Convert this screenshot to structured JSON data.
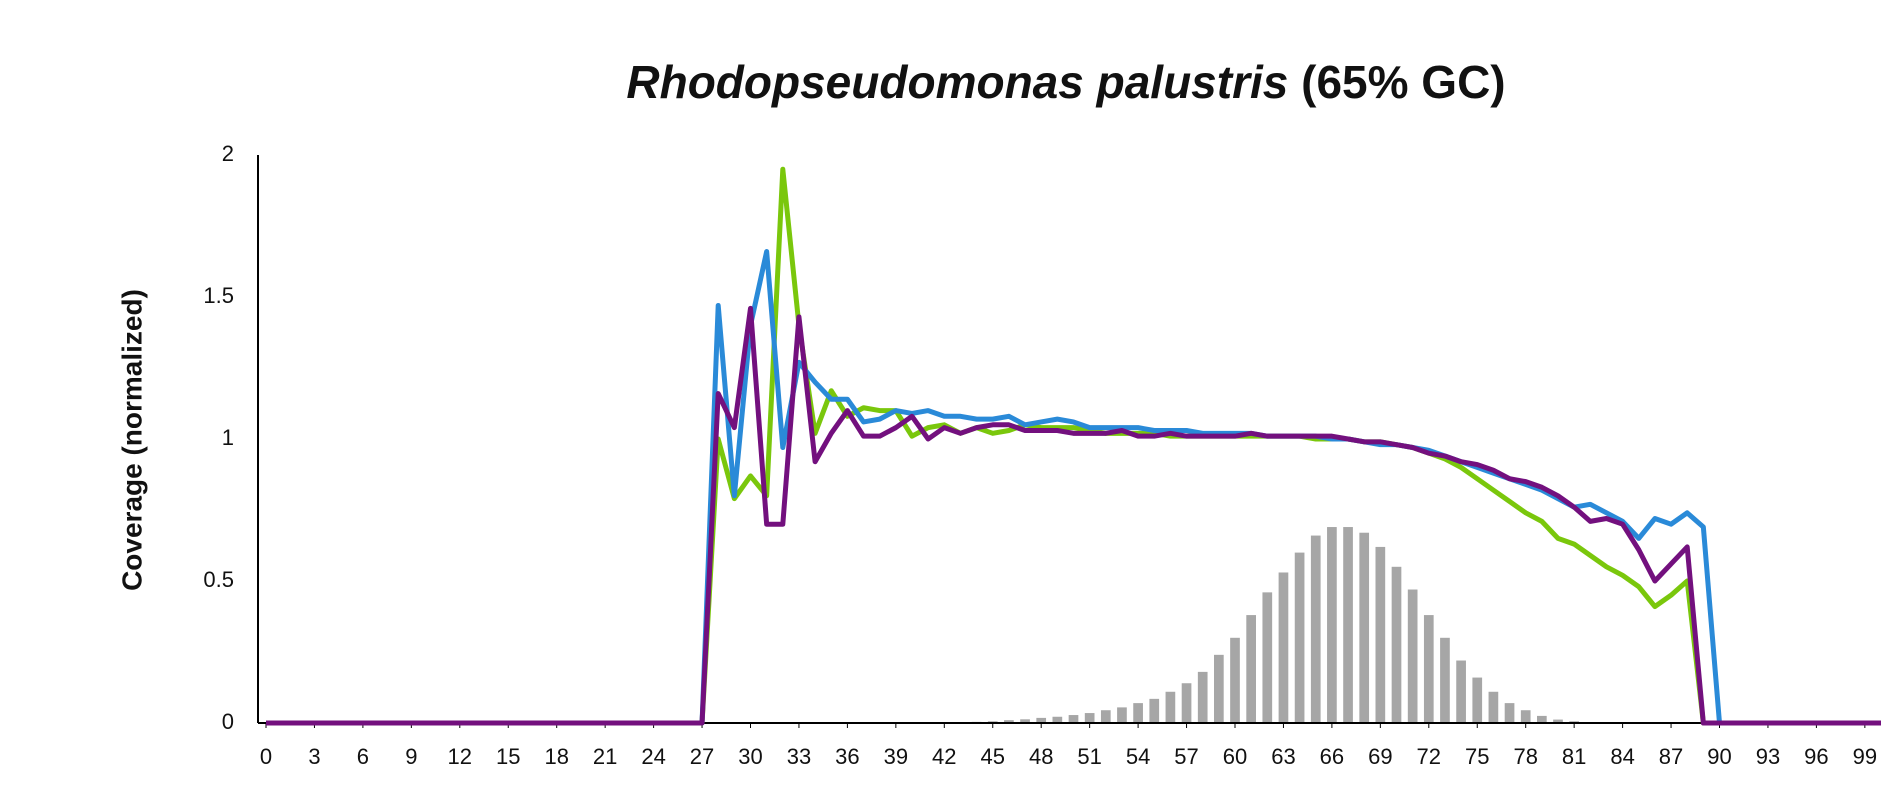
{
  "chart_data": {
    "type": "line",
    "title": "Rhodopseudomonas palustris",
    "title_suffix": " (65% GC)",
    "ylabel": "Coverage (normalized)",
    "x": [
      0,
      1,
      2,
      3,
      4,
      5,
      6,
      7,
      8,
      9,
      10,
      11,
      12,
      13,
      14,
      15,
      16,
      17,
      18,
      19,
      20,
      21,
      22,
      23,
      24,
      25,
      26,
      27,
      28,
      29,
      30,
      31,
      32,
      33,
      34,
      35,
      36,
      37,
      38,
      39,
      40,
      41,
      42,
      43,
      44,
      45,
      46,
      47,
      48,
      49,
      50,
      51,
      52,
      53,
      54,
      55,
      56,
      57,
      58,
      59,
      60,
      61,
      62,
      63,
      64,
      65,
      66,
      67,
      68,
      69,
      70,
      71,
      72,
      73,
      74,
      75,
      76,
      77,
      78,
      79,
      80,
      81,
      82,
      83,
      84,
      85,
      86,
      87,
      88,
      89,
      90,
      91,
      92,
      93,
      94,
      95,
      96,
      97,
      98,
      99,
      100
    ],
    "xlim": [
      0,
      100
    ],
    "xticks": [
      0,
      3,
      6,
      9,
      12,
      15,
      18,
      21,
      24,
      27,
      30,
      33,
      36,
      39,
      42,
      45,
      48,
      51,
      54,
      57,
      60,
      63,
      66,
      69,
      72,
      75,
      78,
      81,
      84,
      87,
      90,
      93,
      96,
      99
    ],
    "ylim": [
      0,
      2
    ],
    "yticks": [
      0,
      0.5,
      1,
      1.5,
      2
    ],
    "bars": {
      "color": "#a6a6a6",
      "values": [
        0,
        0,
        0,
        0,
        0,
        0,
        0,
        0,
        0,
        0,
        0,
        0,
        0,
        0,
        0,
        0,
        0,
        0,
        0,
        0,
        0,
        0,
        0,
        0,
        0,
        0,
        0,
        0,
        0,
        0,
        0,
        0,
        0,
        0,
        0,
        0,
        0,
        0,
        0,
        0,
        0,
        0,
        0,
        0.002,
        0.004,
        0.006,
        0.01,
        0.013,
        0.018,
        0.022,
        0.028,
        0.035,
        0.045,
        0.055,
        0.07,
        0.085,
        0.11,
        0.14,
        0.18,
        0.24,
        0.3,
        0.38,
        0.46,
        0.53,
        0.6,
        0.66,
        0.69,
        0.69,
        0.67,
        0.62,
        0.55,
        0.47,
        0.38,
        0.3,
        0.22,
        0.16,
        0.11,
        0.07,
        0.045,
        0.025,
        0.012,
        0.006,
        0.003,
        0,
        0,
        0,
        0,
        0,
        0,
        0,
        0,
        0,
        0,
        0,
        0,
        0,
        0,
        0,
        0,
        0,
        0
      ]
    },
    "series": [
      {
        "color": "#7ac70c",
        "values": [
          0,
          0,
          0,
          0,
          0,
          0,
          0,
          0,
          0,
          0,
          0,
          0,
          0,
          0,
          0,
          0,
          0,
          0,
          0,
          0,
          0,
          0,
          0,
          0,
          0,
          0,
          0,
          0,
          1.0,
          0.79,
          0.87,
          0.8,
          1.95,
          1.4,
          1.02,
          1.17,
          1.08,
          1.11,
          1.1,
          1.1,
          1.01,
          1.04,
          1.05,
          1.02,
          1.04,
          1.02,
          1.03,
          1.05,
          1.04,
          1.04,
          1.04,
          1.03,
          1.02,
          1.02,
          1.02,
          1.02,
          1.01,
          1.01,
          1.01,
          1.01,
          1.01,
          1.01,
          1.01,
          1.01,
          1.01,
          1.0,
          1.0,
          1.0,
          0.99,
          0.99,
          0.98,
          0.97,
          0.95,
          0.93,
          0.9,
          0.86,
          0.82,
          0.78,
          0.74,
          0.71,
          0.65,
          0.63,
          0.59,
          0.55,
          0.52,
          0.48,
          0.41,
          0.45,
          0.5,
          0,
          0,
          0,
          0,
          0,
          0,
          0,
          0,
          0,
          0,
          0,
          0
        ]
      },
      {
        "color": "#2a8ad8",
        "values": [
          0,
          0,
          0,
          0,
          0,
          0,
          0,
          0,
          0,
          0,
          0,
          0,
          0,
          0,
          0,
          0,
          0,
          0,
          0,
          0,
          0,
          0,
          0,
          0,
          0,
          0,
          0,
          0,
          1.47,
          0.8,
          1.4,
          1.66,
          0.97,
          1.27,
          1.2,
          1.14,
          1.14,
          1.06,
          1.07,
          1.1,
          1.09,
          1.1,
          1.08,
          1.08,
          1.07,
          1.07,
          1.08,
          1.05,
          1.06,
          1.07,
          1.06,
          1.04,
          1.04,
          1.04,
          1.04,
          1.03,
          1.03,
          1.03,
          1.02,
          1.02,
          1.02,
          1.02,
          1.01,
          1.01,
          1.01,
          1.01,
          1.0,
          1.0,
          0.99,
          0.98,
          0.98,
          0.97,
          0.96,
          0.94,
          0.92,
          0.9,
          0.88,
          0.86,
          0.84,
          0.82,
          0.79,
          0.76,
          0.77,
          0.74,
          0.71,
          0.65,
          0.72,
          0.7,
          0.74,
          0.69,
          0,
          0,
          0,
          0,
          0,
          0,
          0,
          0,
          0,
          0,
          0
        ]
      },
      {
        "color": "#73107e",
        "values": [
          0,
          0,
          0,
          0,
          0,
          0,
          0,
          0,
          0,
          0,
          0,
          0,
          0,
          0,
          0,
          0,
          0,
          0,
          0,
          0,
          0,
          0,
          0,
          0,
          0,
          0,
          0,
          0,
          1.16,
          1.04,
          1.46,
          0.7,
          0.7,
          1.43,
          0.92,
          1.02,
          1.1,
          1.01,
          1.01,
          1.04,
          1.08,
          1.0,
          1.04,
          1.02,
          1.04,
          1.05,
          1.05,
          1.03,
          1.03,
          1.03,
          1.02,
          1.02,
          1.02,
          1.03,
          1.01,
          1.01,
          1.02,
          1.01,
          1.01,
          1.01,
          1.01,
          1.02,
          1.01,
          1.01,
          1.01,
          1.01,
          1.01,
          1.0,
          0.99,
          0.99,
          0.98,
          0.97,
          0.95,
          0.94,
          0.92,
          0.91,
          0.89,
          0.86,
          0.85,
          0.83,
          0.8,
          0.76,
          0.71,
          0.72,
          0.7,
          0.61,
          0.5,
          0.56,
          0.62,
          0,
          0,
          0,
          0,
          0,
          0,
          0,
          0,
          0,
          0,
          0,
          0
        ]
      }
    ]
  }
}
